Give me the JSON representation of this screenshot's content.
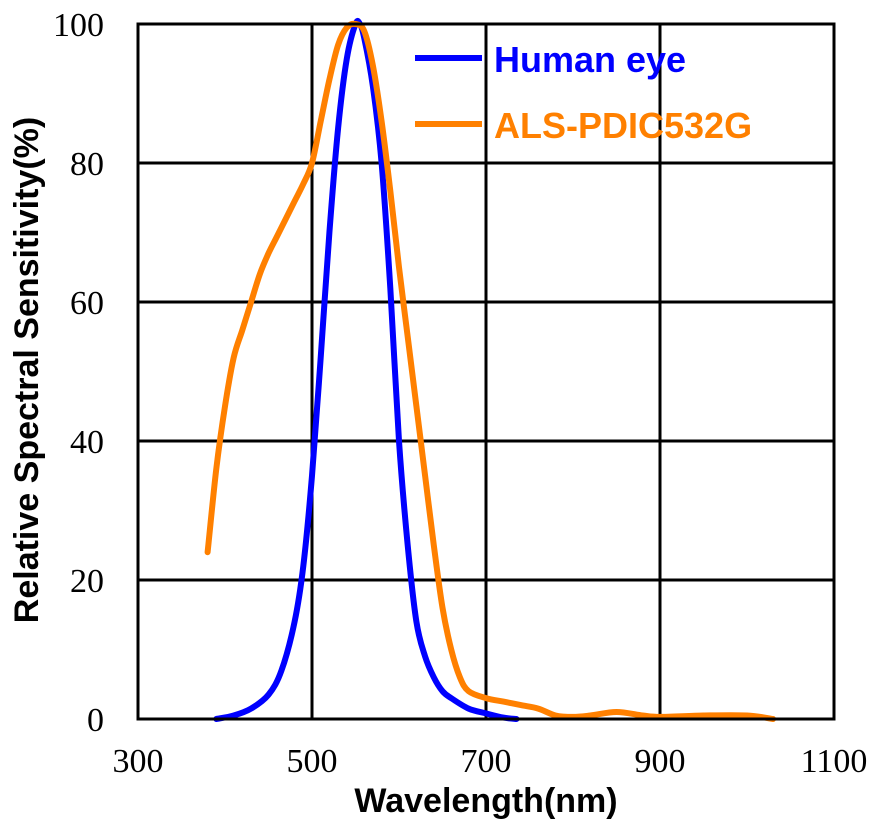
{
  "chart_data": {
    "type": "line",
    "xlabel": "Wavelength(nm)",
    "ylabel": "Relative Spectral Sensitivity(%)",
    "xlim": [
      300,
      1100
    ],
    "ylim": [
      0,
      100
    ],
    "x_ticks": [
      "300",
      "500",
      "700",
      "900",
      "1100"
    ],
    "y_ticks": [
      "0",
      "20",
      "40",
      "60",
      "80",
      "100"
    ],
    "grid": true,
    "legend_position": "top-right",
    "series": [
      {
        "name": "Human eye",
        "color": "#0000ff",
        "x": [
          390,
          410,
          430,
          450,
          465,
          480,
          490,
          500,
          510,
          520,
          530,
          540,
          550,
          555,
          560,
          570,
          580,
          590,
          600,
          610,
          620,
          630,
          640,
          650,
          660,
          680,
          700,
          720,
          735
        ],
        "y": [
          0,
          0.5,
          1.5,
          3.5,
          7,
          14,
          22,
          35,
          52,
          70,
          85,
          95,
          100,
          100,
          98,
          91,
          80,
          62,
          40,
          25,
          14,
          9,
          6,
          4,
          3,
          1.5,
          0.8,
          0.2,
          0
        ]
      },
      {
        "name": "ALS-PDIC532G",
        "color": "#ff8000",
        "x": [
          380,
          390,
          400,
          410,
          420,
          430,
          440,
          450,
          460,
          470,
          480,
          490,
          500,
          510,
          520,
          530,
          540,
          550,
          560,
          570,
          580,
          590,
          600,
          610,
          620,
          630,
          640,
          650,
          660,
          670,
          680,
          700,
          720,
          740,
          760,
          780,
          800,
          820,
          850,
          880,
          900,
          950,
          1000,
          1030
        ],
        "y": [
          24,
          36,
          45,
          52,
          56,
          60,
          64,
          67,
          69.5,
          72,
          74.5,
          77,
          80,
          86,
          92,
          97,
          99.5,
          100,
          99,
          94,
          86,
          76,
          65,
          55,
          45,
          35,
          25,
          16,
          10,
          6,
          4,
          3,
          2.5,
          2,
          1.5,
          0.5,
          0.3,
          0.5,
          1,
          0.5,
          0.3,
          0.5,
          0.5,
          0
        ]
      }
    ]
  }
}
